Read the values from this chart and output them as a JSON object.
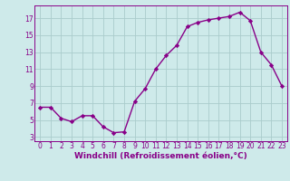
{
  "x": [
    0,
    1,
    2,
    3,
    4,
    5,
    6,
    7,
    8,
    9,
    10,
    11,
    12,
    13,
    14,
    15,
    16,
    17,
    18,
    19,
    20,
    21,
    22,
    23
  ],
  "y": [
    6.5,
    6.5,
    5.2,
    4.8,
    5.5,
    5.5,
    4.2,
    3.5,
    3.6,
    7.2,
    8.7,
    11.0,
    12.6,
    13.8,
    16.0,
    16.5,
    16.8,
    17.0,
    17.2,
    17.7,
    16.7,
    13.0,
    11.5,
    9.0
  ],
  "line_color": "#880088",
  "marker": "D",
  "marker_size": 2.2,
  "bg_color": "#ceeaea",
  "grid_color": "#aacccc",
  "yticks": [
    3,
    5,
    7,
    9,
    11,
    13,
    15,
    17
  ],
  "xticks": [
    0,
    1,
    2,
    3,
    4,
    5,
    6,
    7,
    8,
    9,
    10,
    11,
    12,
    13,
    14,
    15,
    16,
    17,
    18,
    19,
    20,
    21,
    22,
    23
  ],
  "ylim": [
    2.5,
    18.5
  ],
  "xlim": [
    -0.5,
    23.5
  ],
  "xlabel": "Windchill (Refroidissement éolien,°C)",
  "xlabel_fontsize": 6.5,
  "tick_fontsize": 5.5,
  "line_width": 1.0
}
